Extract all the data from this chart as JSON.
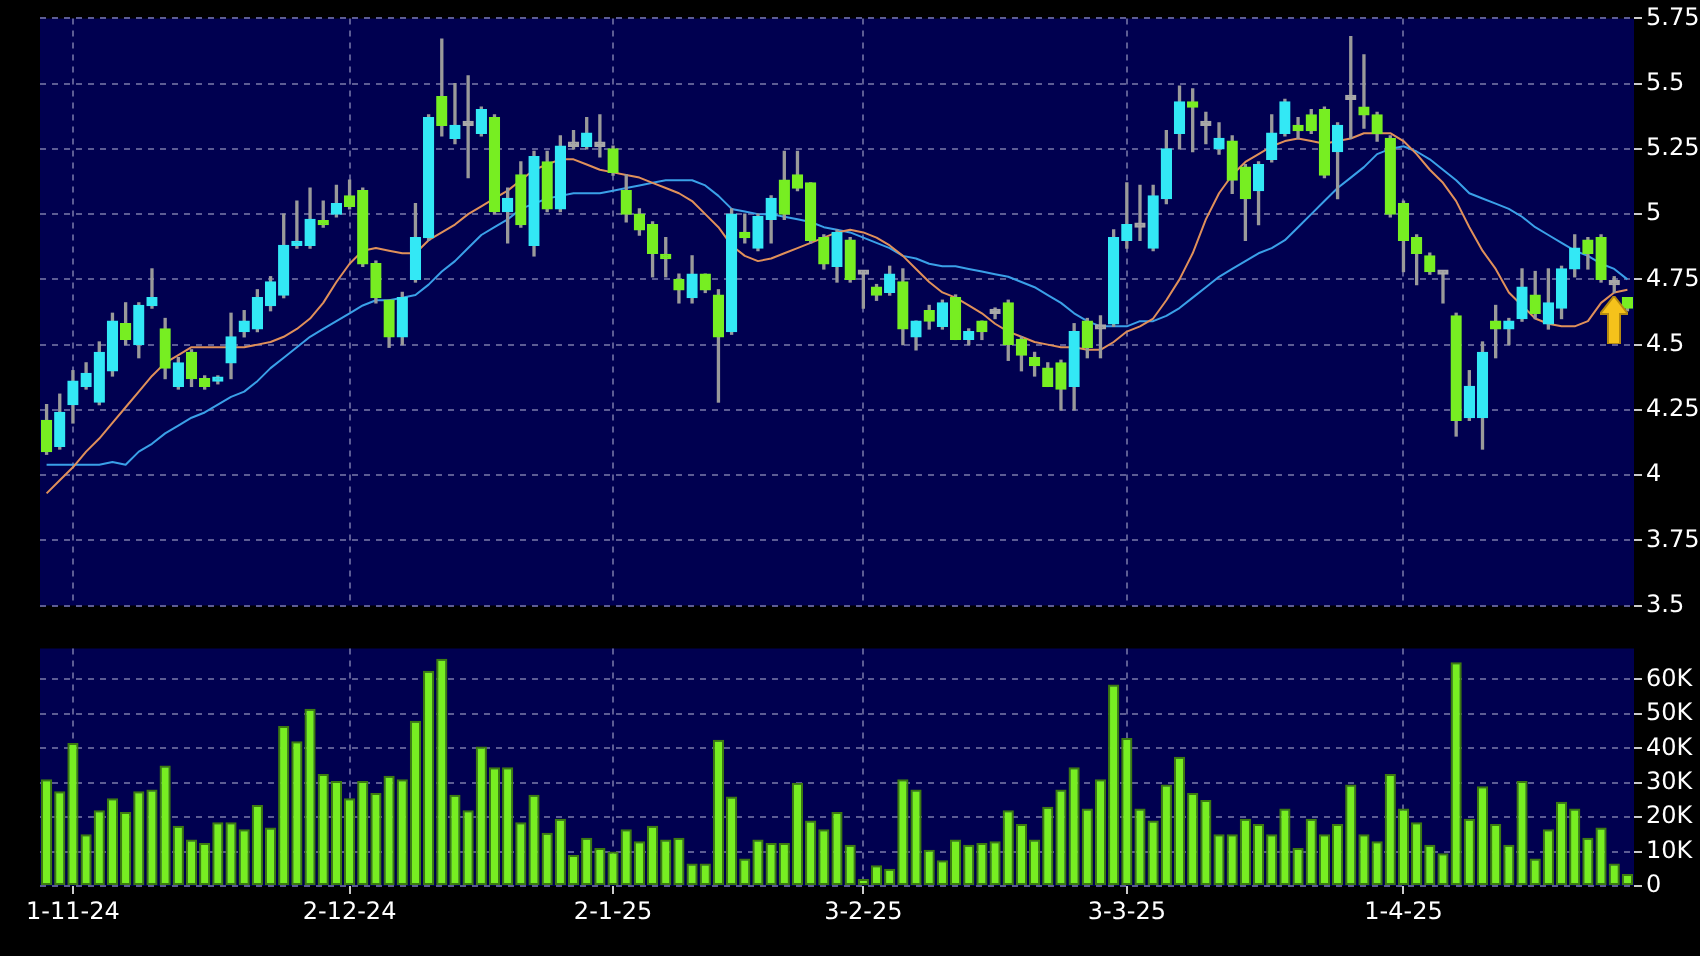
{
  "chart_data": [
    {
      "type": "candlestick",
      "tick_labels": "y",
      "grid": true,
      "ohlc": [
        [
          4.21,
          4.27,
          4.08,
          4.09
        ],
        [
          4.11,
          4.31,
          4.1,
          4.24
        ],
        [
          4.27,
          4.4,
          4.2,
          4.36
        ],
        [
          4.34,
          4.43,
          4.33,
          4.39
        ],
        [
          4.28,
          4.51,
          4.27,
          4.47
        ],
        [
          4.4,
          4.62,
          4.38,
          4.59
        ],
        [
          4.58,
          4.66,
          4.5,
          4.52
        ],
        [
          4.5,
          4.66,
          4.45,
          4.65
        ],
        [
          4.65,
          4.79,
          4.64,
          4.68
        ],
        [
          4.56,
          4.6,
          4.37,
          4.41
        ],
        [
          4.34,
          4.45,
          4.33,
          4.43
        ],
        [
          4.47,
          4.48,
          4.34,
          4.37
        ],
        [
          4.37,
          4.38,
          4.33,
          4.34
        ],
        [
          4.36,
          4.38,
          4.35,
          4.37
        ],
        [
          4.43,
          4.62,
          4.37,
          4.53
        ],
        [
          4.55,
          4.63,
          4.53,
          4.59
        ],
        [
          4.56,
          4.71,
          4.55,
          4.68
        ],
        [
          4.65,
          4.76,
          4.63,
          4.74
        ],
        [
          4.69,
          5.0,
          4.68,
          4.88
        ],
        [
          4.88,
          5.05,
          4.87,
          4.89
        ],
        [
          4.88,
          5.1,
          4.87,
          4.98
        ],
        [
          4.97,
          5.05,
          4.95,
          4.96
        ],
        [
          5.0,
          5.11,
          4.99,
          5.04
        ],
        [
          5.07,
          5.13,
          5.02,
          5.03
        ],
        [
          5.09,
          5.1,
          4.8,
          4.81
        ],
        [
          4.81,
          4.82,
          4.66,
          4.68
        ],
        [
          4.67,
          4.67,
          4.49,
          4.53
        ],
        [
          4.53,
          4.7,
          4.5,
          4.68
        ],
        [
          4.75,
          5.04,
          4.74,
          4.91
        ],
        [
          4.91,
          5.38,
          4.9,
          5.37
        ],
        [
          5.45,
          5.67,
          5.3,
          5.34
        ],
        [
          5.29,
          5.5,
          5.27,
          5.34
        ],
        [
          5.34,
          5.53,
          5.14,
          5.34
        ],
        [
          5.31,
          5.41,
          5.3,
          5.4
        ],
        [
          5.37,
          5.38,
          5.0,
          5.01
        ],
        [
          5.01,
          5.1,
          4.89,
          5.06
        ],
        [
          5.15,
          5.2,
          4.95,
          4.96
        ],
        [
          4.88,
          5.24,
          4.84,
          5.22
        ],
        [
          5.2,
          5.24,
          5.01,
          5.02
        ],
        [
          5.02,
          5.3,
          5.01,
          5.26
        ],
        [
          5.26,
          5.32,
          5.25,
          5.26
        ],
        [
          5.26,
          5.37,
          5.25,
          5.31
        ],
        [
          5.26,
          5.38,
          5.22,
          5.26
        ],
        [
          5.25,
          5.26,
          5.15,
          5.16
        ],
        [
          5.09,
          5.15,
          4.97,
          5.0
        ],
        [
          5.0,
          5.02,
          4.92,
          4.94
        ],
        [
          4.96,
          4.97,
          4.76,
          4.85
        ],
        [
          4.84,
          4.91,
          4.76,
          4.83
        ],
        [
          4.75,
          4.77,
          4.66,
          4.71
        ],
        [
          4.68,
          4.84,
          4.66,
          4.77
        ],
        [
          4.77,
          4.77,
          4.7,
          4.71
        ],
        [
          4.69,
          4.71,
          4.28,
          4.53
        ],
        [
          4.55,
          5.02,
          4.54,
          5.0
        ],
        [
          4.93,
          5.0,
          4.89,
          4.91
        ],
        [
          4.87,
          5.0,
          4.86,
          4.99
        ],
        [
          4.98,
          5.07,
          4.89,
          5.06
        ],
        [
          5.13,
          5.24,
          4.98,
          5.0
        ],
        [
          5.15,
          5.24,
          5.09,
          5.1
        ],
        [
          5.12,
          5.12,
          4.89,
          4.9
        ],
        [
          4.91,
          4.92,
          4.79,
          4.81
        ],
        [
          4.8,
          4.94,
          4.74,
          4.93
        ],
        [
          4.9,
          4.91,
          4.74,
          4.75
        ],
        [
          4.77,
          4.78,
          4.64,
          4.77
        ],
        [
          4.72,
          4.73,
          4.67,
          4.69
        ],
        [
          4.7,
          4.8,
          4.69,
          4.77
        ],
        [
          4.74,
          4.79,
          4.5,
          4.56
        ],
        [
          4.53,
          4.59,
          4.48,
          4.59
        ],
        [
          4.63,
          4.65,
          4.56,
          4.59
        ],
        [
          4.57,
          4.67,
          4.56,
          4.66
        ],
        [
          4.68,
          4.69,
          4.52,
          4.52
        ],
        [
          4.52,
          4.56,
          4.5,
          4.55
        ],
        [
          4.59,
          4.59,
          4.52,
          4.55
        ],
        [
          4.62,
          4.64,
          4.6,
          4.62
        ],
        [
          4.66,
          4.67,
          4.44,
          4.5
        ],
        [
          4.52,
          4.53,
          4.4,
          4.46
        ],
        [
          4.45,
          4.47,
          4.38,
          4.42
        ],
        [
          4.41,
          4.43,
          4.34,
          4.34
        ],
        [
          4.43,
          4.44,
          4.25,
          4.33
        ],
        [
          4.34,
          4.58,
          4.25,
          4.55
        ],
        [
          4.59,
          4.6,
          4.45,
          4.49
        ],
        [
          4.56,
          4.61,
          4.45,
          4.56
        ],
        [
          4.58,
          4.94,
          4.57,
          4.91
        ],
        [
          4.9,
          5.12,
          4.87,
          4.96
        ],
        [
          4.95,
          5.11,
          4.9,
          4.95
        ],
        [
          4.87,
          5.11,
          4.86,
          5.07
        ],
        [
          5.06,
          5.32,
          5.04,
          5.25
        ],
        [
          5.31,
          5.49,
          5.25,
          5.43
        ],
        [
          5.43,
          5.48,
          5.24,
          5.41
        ],
        [
          5.34,
          5.39,
          5.27,
          5.34
        ],
        [
          5.25,
          5.35,
          5.23,
          5.29
        ],
        [
          5.28,
          5.3,
          5.08,
          5.13
        ],
        [
          5.18,
          5.19,
          4.9,
          5.06
        ],
        [
          5.09,
          5.2,
          4.96,
          5.19
        ],
        [
          5.21,
          5.38,
          5.2,
          5.31
        ],
        [
          5.31,
          5.44,
          5.3,
          5.43
        ],
        [
          5.34,
          5.37,
          5.29,
          5.32
        ],
        [
          5.38,
          5.4,
          5.31,
          5.32
        ],
        [
          5.4,
          5.41,
          5.14,
          5.15
        ],
        [
          5.24,
          5.35,
          5.06,
          5.34
        ],
        [
          5.44,
          5.68,
          5.29,
          5.44
        ],
        [
          5.41,
          5.61,
          5.33,
          5.38
        ],
        [
          5.38,
          5.39,
          5.28,
          5.31
        ],
        [
          5.29,
          5.3,
          4.99,
          5.0
        ],
        [
          5.04,
          5.05,
          4.78,
          4.9
        ],
        [
          4.91,
          4.92,
          4.73,
          4.85
        ],
        [
          4.84,
          4.85,
          4.77,
          4.78
        ],
        [
          4.77,
          4.78,
          4.66,
          4.77
        ],
        [
          4.61,
          4.62,
          4.15,
          4.21
        ],
        [
          4.22,
          4.4,
          4.21,
          4.34
        ],
        [
          4.22,
          4.51,
          4.1,
          4.47
        ],
        [
          4.59,
          4.65,
          4.45,
          4.56
        ],
        [
          4.56,
          4.6,
          4.5,
          4.59
        ],
        [
          4.6,
          4.79,
          4.59,
          4.72
        ],
        [
          4.69,
          4.78,
          4.6,
          4.62
        ],
        [
          4.58,
          4.79,
          4.56,
          4.66
        ],
        [
          4.64,
          4.8,
          4.6,
          4.79
        ],
        [
          4.79,
          4.92,
          4.76,
          4.87
        ],
        [
          4.9,
          4.91,
          4.79,
          4.85
        ],
        [
          4.91,
          4.92,
          4.74,
          4.75
        ],
        [
          4.73,
          4.76,
          4.7,
          4.73
        ],
        [
          4.68,
          4.68,
          4.63,
          4.64
        ]
      ],
      "colors": [
        "#77ee22",
        "#33e8f5",
        "#33e8f5",
        "#33e8f5",
        "#33e8f5",
        "#33e8f5",
        "#77ee22",
        "#33e8f5",
        "#33e8f5",
        "#77ee22",
        "#33e8f5",
        "#77ee22",
        "#77ee22",
        "#33e8f5",
        "#33e8f5",
        "#33e8f5",
        "#33e8f5",
        "#33e8f5",
        "#33e8f5",
        "#33e8f5",
        "#33e8f5",
        "#77ee22",
        "#33e8f5",
        "#77ee22",
        "#77ee22",
        "#77ee22",
        "#77ee22",
        "#33e8f5",
        "#33e8f5",
        "#33e8f5",
        "#77ee22",
        "#33e8f5",
        "#a8a8a8",
        "#33e8f5",
        "#77ee22",
        "#33e8f5",
        "#77ee22",
        "#33e8f5",
        "#77ee22",
        "#33e8f5",
        "#a8a8a8",
        "#33e8f5",
        "#a8a8a8",
        "#77ee22",
        "#77ee22",
        "#77ee22",
        "#77ee22",
        "#77ee22",
        "#77ee22",
        "#33e8f5",
        "#77ee22",
        "#77ee22",
        "#33e8f5",
        "#77ee22",
        "#33e8f5",
        "#33e8f5",
        "#77ee22",
        "#77ee22",
        "#77ee22",
        "#77ee22",
        "#33e8f5",
        "#77ee22",
        "#a8a8a8",
        "#77ee22",
        "#33e8f5",
        "#77ee22",
        "#33e8f5",
        "#77ee22",
        "#33e8f5",
        "#77ee22",
        "#33e8f5",
        "#77ee22",
        "#a8a8a8",
        "#77ee22",
        "#77ee22",
        "#77ee22",
        "#77ee22",
        "#77ee22",
        "#33e8f5",
        "#77ee22",
        "#a8a8a8",
        "#33e8f5",
        "#33e8f5",
        "#a8a8a8",
        "#33e8f5",
        "#33e8f5",
        "#33e8f5",
        "#77ee22",
        "#a8a8a8",
        "#33e8f5",
        "#77ee22",
        "#77ee22",
        "#33e8f5",
        "#33e8f5",
        "#33e8f5",
        "#77ee22",
        "#77ee22",
        "#77ee22",
        "#33e8f5",
        "#a8a8a8",
        "#77ee22",
        "#77ee22",
        "#77ee22",
        "#77ee22",
        "#77ee22",
        "#77ee22",
        "#a8a8a8",
        "#77ee22",
        "#33e8f5",
        "#33e8f5",
        "#77ee22",
        "#33e8f5",
        "#33e8f5",
        "#77ee22",
        "#33e8f5",
        "#33e8f5",
        "#33e8f5",
        "#77ee22",
        "#77ee22",
        "#a8a8a8",
        "#77ee22"
      ],
      "series": [
        {
          "type": "line",
          "color": "#e0905a",
          "values": [
            3.93,
            3.98,
            4.03,
            4.09,
            4.14,
            4.2,
            4.26,
            4.32,
            4.38,
            4.43,
            4.46,
            4.49,
            4.49,
            4.49,
            4.49,
            4.49,
            4.5,
            4.51,
            4.53,
            4.56,
            4.6,
            4.66,
            4.74,
            4.81,
            4.86,
            4.87,
            4.86,
            4.85,
            4.85,
            4.9,
            4.93,
            4.96,
            5.0,
            5.03,
            5.06,
            5.09,
            5.13,
            5.17,
            5.19,
            5.21,
            5.21,
            5.19,
            5.17,
            5.16,
            5.15,
            5.14,
            5.12,
            5.1,
            5.08,
            5.05,
            5.0,
            4.95,
            4.88,
            4.84,
            4.82,
            4.83,
            4.85,
            4.87,
            4.89,
            4.91,
            4.93,
            4.94,
            4.93,
            4.91,
            4.88,
            4.84,
            4.79,
            4.74,
            4.7,
            4.68,
            4.65,
            4.62,
            4.58,
            4.55,
            4.53,
            4.51,
            4.5,
            4.49,
            4.49,
            4.48,
            4.48,
            4.51,
            4.55,
            4.57,
            4.6,
            4.67,
            4.75,
            4.85,
            4.98,
            5.08,
            5.15,
            5.2,
            5.23,
            5.26,
            5.28,
            5.29,
            5.28,
            5.27,
            5.28,
            5.29,
            5.31,
            5.31,
            5.31,
            5.28,
            5.23,
            5.17,
            5.12,
            5.05,
            4.95,
            4.86,
            4.79,
            4.7,
            4.65,
            4.6,
            4.58,
            4.57,
            4.57,
            4.59,
            4.66,
            4.7,
            4.71
          ]
        },
        {
          "type": "line",
          "color": "#3aa0e8",
          "values": [
            4.04,
            4.04,
            4.04,
            4.04,
            4.04,
            4.05,
            4.04,
            4.09,
            4.12,
            4.16,
            4.19,
            4.22,
            4.24,
            4.27,
            4.3,
            4.32,
            4.36,
            4.41,
            4.45,
            4.49,
            4.53,
            4.56,
            4.59,
            4.62,
            4.65,
            4.67,
            4.67,
            4.68,
            4.69,
            4.73,
            4.78,
            4.82,
            4.87,
            4.92,
            4.95,
            4.98,
            5.02,
            5.04,
            5.06,
            5.07,
            5.08,
            5.08,
            5.08,
            5.09,
            5.1,
            5.11,
            5.12,
            5.13,
            5.13,
            5.13,
            5.11,
            5.07,
            5.02,
            5.01,
            5.0,
            5.0,
            4.99,
            4.98,
            4.97,
            4.95,
            4.94,
            4.93,
            4.91,
            4.89,
            4.87,
            4.84,
            4.83,
            4.81,
            4.8,
            4.8,
            4.79,
            4.78,
            4.77,
            4.76,
            4.74,
            4.72,
            4.69,
            4.66,
            4.62,
            4.59,
            4.57,
            4.57,
            4.57,
            4.59,
            4.59,
            4.61,
            4.64,
            4.68,
            4.72,
            4.76,
            4.79,
            4.82,
            4.85,
            4.87,
            4.9,
            4.95,
            5.0,
            5.05,
            5.1,
            5.14,
            5.18,
            5.23,
            5.25,
            5.26,
            5.24,
            5.21,
            5.17,
            5.13,
            5.08,
            5.06,
            5.04,
            5.02,
            4.99,
            4.95,
            4.92,
            4.89,
            4.86,
            4.84,
            4.81,
            4.79,
            4.75
          ]
        }
      ],
      "ylim": [
        3.5,
        5.75
      ],
      "yticks": [
        3.5,
        3.75,
        4,
        4.25,
        4.5,
        4.75,
        5,
        5.25,
        5.5,
        5.75
      ]
    },
    {
      "type": "bar",
      "grid": true,
      "color": "#77ee22",
      "categories": [
        null,
        null,
        "1-11-24",
        null,
        null,
        null,
        null,
        null,
        null,
        null,
        null,
        null,
        null,
        null,
        null,
        null,
        null,
        null,
        null,
        null,
        null,
        null,
        null,
        "2-12-24",
        null,
        null,
        null,
        null,
        null,
        null,
        null,
        null,
        null,
        null,
        null,
        null,
        null,
        null,
        null,
        null,
        null,
        null,
        null,
        "2-1-25",
        null,
        null,
        null,
        null,
        null,
        null,
        null,
        null,
        null,
        null,
        null,
        null,
        null,
        null,
        null,
        null,
        null,
        null,
        "3-2-25",
        null,
        null,
        null,
        null,
        null,
        null,
        null,
        null,
        null,
        null,
        null,
        null,
        null,
        null,
        null,
        null,
        null,
        null,
        null,
        "3-3-25",
        null,
        null,
        null,
        null,
        null,
        null,
        null,
        null,
        null,
        null,
        null,
        null,
        null,
        null,
        null,
        null,
        null,
        null,
        null,
        null,
        "1-4-25",
        null,
        null,
        null,
        null,
        null,
        null,
        null,
        null,
        null,
        null,
        null,
        null,
        null,
        null,
        null,
        null,
        null
      ],
      "values": [
        31000,
        27500,
        41500,
        15000,
        22000,
        25500,
        21500,
        27500,
        28000,
        35000,
        17500,
        13500,
        12500,
        18500,
        18500,
        16500,
        23500,
        17000,
        46500,
        42000,
        51500,
        32500,
        30500,
        25500,
        30500,
        27000,
        32000,
        31000,
        48000,
        62500,
        66000,
        26500,
        22000,
        40500,
        34500,
        34500,
        18500,
        26500,
        15500,
        19500,
        9000,
        14000,
        11000,
        10000,
        16500,
        13000,
        17500,
        13500,
        14000,
        6500,
        6500,
        42500,
        26000,
        8000,
        13500,
        12500,
        12500,
        30000,
        19000,
        16500,
        21500,
        12000,
        2000,
        6000,
        5000,
        31000,
        28000,
        10500,
        7500,
        13500,
        12000,
        12500,
        13000,
        22000,
        18000,
        13500,
        23000,
        28000,
        34500,
        22500,
        31000,
        58500,
        43000,
        22500,
        19000,
        29500,
        37500,
        27000,
        25000,
        15000,
        15000,
        19500,
        18000,
        15000,
        22500,
        11000,
        19500,
        15000,
        18000,
        29500,
        15000,
        13000,
        32500,
        22500,
        18500,
        12000,
        9500,
        65000,
        19500,
        29000,
        18000,
        12000,
        30500,
        8000,
        16500,
        24500,
        22500,
        14000,
        17000,
        6500,
        3500
      ],
      "ylim": [
        0,
        69000
      ],
      "yticks": [
        0,
        {
          "value": 10000,
          "label": "10K"
        },
        {
          "value": 20000,
          "label": "20K"
        },
        {
          "value": 30000,
          "label": "30K"
        },
        {
          "value": 40000,
          "label": "40K"
        },
        {
          "value": 50000,
          "label": "50K"
        },
        {
          "value": 60000,
          "label": "60K"
        }
      ]
    }
  ]
}
